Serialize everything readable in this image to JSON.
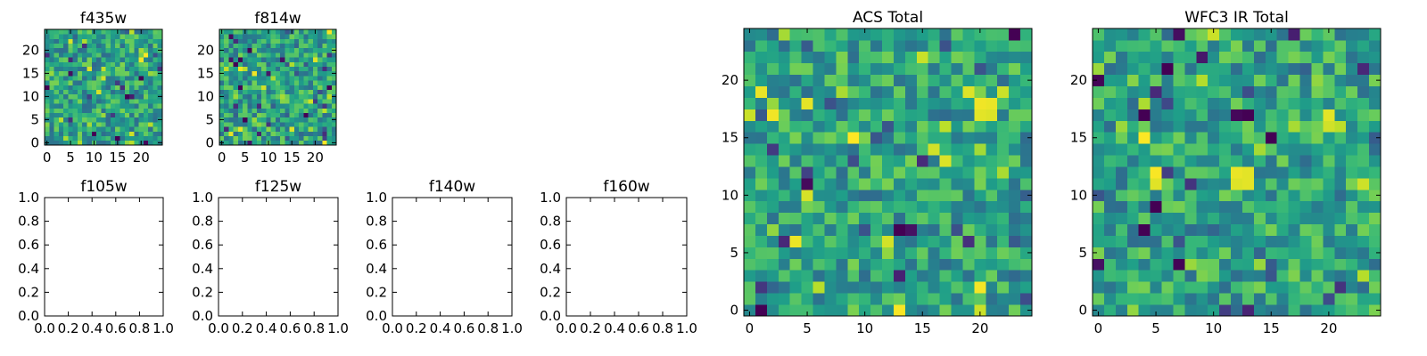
{
  "chart_data": [
    {
      "type": "heatmap",
      "title": "f435w",
      "xlabel": "",
      "ylabel": "",
      "xlim": [
        -0.5,
        24.5
      ],
      "ylim": [
        -0.5,
        24.5
      ],
      "xticks": [
        "0",
        "5",
        "10",
        "15",
        "20"
      ],
      "yticks": [
        "0",
        "5",
        "10",
        "15",
        "20"
      ],
      "colormap": "viridis",
      "grid": false,
      "seed": 11,
      "hotspots": [
        {
          "x": 20,
          "y": 18,
          "value": 0.98
        }
      ]
    },
    {
      "type": "heatmap",
      "title": "f814w",
      "xlabel": "",
      "ylabel": "",
      "xlim": [
        -0.5,
        24.5
      ],
      "ylim": [
        -0.5,
        24.5
      ],
      "xticks": [
        "0",
        "5",
        "10",
        "15",
        "20"
      ],
      "yticks": [
        "0",
        "5",
        "10",
        "15",
        "20"
      ],
      "colormap": "viridis",
      "grid": false,
      "seed": 23,
      "hotspots": [
        {
          "x": 20,
          "y": 18,
          "value": 0.95
        }
      ]
    },
    {
      "type": "heatmap",
      "title": "f105w",
      "xlim": [
        0.0,
        1.0
      ],
      "ylim": [
        0.0,
        1.0
      ],
      "xticks": [
        "0.0",
        "0.2",
        "0.4",
        "0.6",
        "0.8",
        "1.0"
      ],
      "yticks": [
        "0.0",
        "0.2",
        "0.4",
        "0.6",
        "0.8",
        "1.0"
      ],
      "empty": true
    },
    {
      "type": "heatmap",
      "title": "f125w",
      "xlim": [
        0.0,
        1.0
      ],
      "ylim": [
        0.0,
        1.0
      ],
      "xticks": [
        "0.0",
        "0.2",
        "0.4",
        "0.6",
        "0.8",
        "1.0"
      ],
      "yticks": [
        "0.0",
        "0.2",
        "0.4",
        "0.6",
        "0.8",
        "1.0"
      ],
      "empty": true
    },
    {
      "type": "heatmap",
      "title": "f140w",
      "xlim": [
        0.0,
        1.0
      ],
      "ylim": [
        0.0,
        1.0
      ],
      "xticks": [
        "0.0",
        "0.2",
        "0.4",
        "0.6",
        "0.8",
        "1.0"
      ],
      "yticks": [
        "0.0",
        "0.2",
        "0.4",
        "0.6",
        "0.8",
        "1.0"
      ],
      "empty": true
    },
    {
      "type": "heatmap",
      "title": "f160w",
      "xlim": [
        0.0,
        1.0
      ],
      "ylim": [
        0.0,
        1.0
      ],
      "xticks": [
        "0.0",
        "0.2",
        "0.4",
        "0.6",
        "0.8",
        "1.0"
      ],
      "yticks": [
        "0.0",
        "0.2",
        "0.4",
        "0.6",
        "0.8",
        "1.0"
      ],
      "empty": true
    },
    {
      "type": "heatmap",
      "title": "ACS Total",
      "xlim": [
        -0.5,
        24.5
      ],
      "ylim": [
        -0.5,
        24.5
      ],
      "xticks": [
        "0",
        "5",
        "10",
        "15",
        "20"
      ],
      "yticks": [
        "0",
        "5",
        "10",
        "15",
        "20"
      ],
      "colormap": "viridis",
      "grid": false,
      "seed": 37,
      "hotspots": [
        {
          "x": 19,
          "y": 19,
          "value": 0.95
        },
        {
          "x": 20,
          "y": 18,
          "value": 0.98
        },
        {
          "x": 21,
          "y": 18,
          "value": 0.97
        },
        {
          "x": 20,
          "y": 17,
          "value": 0.96
        },
        {
          "x": 21,
          "y": 17,
          "value": 0.95
        },
        {
          "x": 16,
          "y": 14,
          "value": 0.93
        },
        {
          "x": 20,
          "y": 0,
          "value": 0.92
        }
      ]
    },
    {
      "type": "heatmap",
      "title": "WFC3 IR Total",
      "xlim": [
        -0.5,
        24.5
      ],
      "ylim": [
        -0.5,
        24.5
      ],
      "xticks": [
        "0",
        "5",
        "10",
        "15",
        "20"
      ],
      "yticks": [
        "0",
        "5",
        "10",
        "15",
        "20"
      ],
      "colormap": "viridis",
      "grid": false,
      "seed": 53,
      "hotspots": [
        {
          "x": 12,
          "y": 12,
          "value": 0.97
        },
        {
          "x": 13,
          "y": 12,
          "value": 0.96
        },
        {
          "x": 12,
          "y": 11,
          "value": 0.95
        },
        {
          "x": 13,
          "y": 11,
          "value": 0.96
        },
        {
          "x": 20,
          "y": 17,
          "value": 0.96
        },
        {
          "x": 20,
          "y": 16,
          "value": 0.93
        },
        {
          "x": 21,
          "y": 16,
          "value": 0.9
        },
        {
          "x": 10,
          "y": 24,
          "value": 0.92
        }
      ]
    }
  ]
}
